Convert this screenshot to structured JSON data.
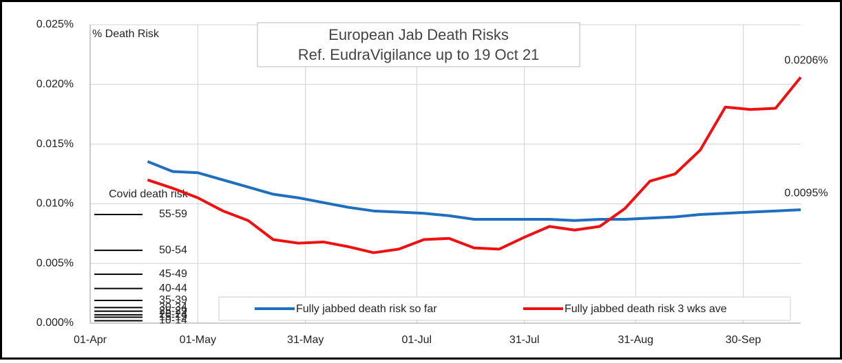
{
  "chart_data": {
    "type": "line",
    "title": "European Jab Death Risks",
    "subtitle": "Ref. EudraVigilance up to 19 Oct 21",
    "y_label": "% Death Risk",
    "x": [
      16,
      23,
      30,
      37,
      44,
      51,
      58,
      65,
      72,
      79,
      86,
      93,
      100,
      107,
      114,
      121,
      128,
      135,
      142,
      149,
      156,
      163,
      170,
      177,
      184,
      191,
      198
    ],
    "xlim": [
      0,
      198
    ],
    "xticks": [
      {
        "value": 0,
        "label": "01-Apr"
      },
      {
        "value": 30,
        "label": "01-May"
      },
      {
        "value": 60,
        "label": "31-May"
      },
      {
        "value": 91,
        "label": "01-Jul"
      },
      {
        "value": 121,
        "label": "31-Jul"
      },
      {
        "value": 152,
        "label": "31-Aug"
      },
      {
        "value": 182,
        "label": "30-Sep"
      }
    ],
    "ylim": [
      0,
      0.025
    ],
    "yticks": [
      {
        "value": 0,
        "label": "0.000%"
      },
      {
        "value": 0.005,
        "label": "0.005%"
      },
      {
        "value": 0.01,
        "label": "0.010%"
      },
      {
        "value": 0.015,
        "label": "0.015%"
      },
      {
        "value": 0.02,
        "label": "0.020%"
      },
      {
        "value": 0.025,
        "label": "0.025%"
      }
    ],
    "grid": true,
    "series": [
      {
        "name": "Fully jabbed death risk so far",
        "color": "#1f6fbf",
        "values": [
          0.01354,
          0.0127,
          0.0126,
          0.012,
          0.0114,
          0.0108,
          0.0105,
          0.0101,
          0.0097,
          0.0094,
          0.0093,
          0.0092,
          0.009,
          0.0087,
          0.0087,
          0.0087,
          0.0087,
          0.0086,
          0.0087,
          0.0087,
          0.0088,
          0.0089,
          0.0091,
          0.0092,
          0.0093,
          0.0094,
          0.0095
        ],
        "value_labels": {
          "26": "0.0095%"
        }
      },
      {
        "name": "Fully jabbed death risk 3 wks ave",
        "color": "#ee1111",
        "values": [
          0.012,
          0.0113,
          0.0105,
          0.0094,
          0.0086,
          0.007,
          0.0067,
          0.0068,
          0.0064,
          0.0059,
          0.0062,
          0.007,
          0.0071,
          0.0063,
          0.0062,
          0.0072,
          0.0081,
          0.0078,
          0.0081,
          0.0096,
          0.0119,
          0.0125,
          0.0145,
          0.0181,
          0.0179,
          0.018,
          0.0206
        ],
        "value_labels": {
          "26": "0.0206%"
        }
      }
    ],
    "covid_risk": {
      "label": "Covid death risk",
      "groups": [
        "55-59",
        "50-54",
        "45-49",
        "40-44",
        "35-39",
        "30-34",
        "25-29",
        "20-24",
        "15-19",
        "10-14"
      ],
      "values": [
        0.0091,
        0.0061,
        0.0041,
        0.0029,
        0.0019,
        0.0013,
        0.001,
        0.0007,
        0.0005,
        0.0002
      ]
    }
  }
}
